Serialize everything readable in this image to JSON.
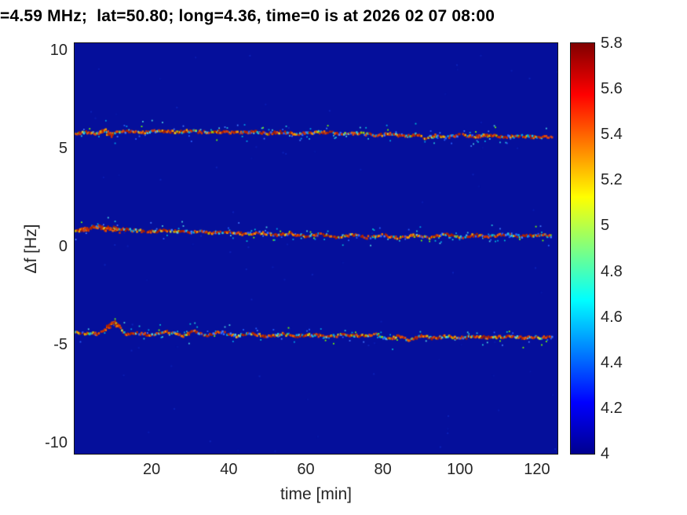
{
  "chart_data": {
    "type": "heatmap",
    "title": "=4.59 MHz;  lat=50.80; long=4.36, time=0 is at 2026 02 07 08:00",
    "xlabel": "time [min]",
    "ylabel": "Δf [Hz]",
    "xlim": [
      0,
      125
    ],
    "ylim": [
      -10,
      10
    ],
    "xticks": [
      20,
      40,
      60,
      80,
      100,
      120
    ],
    "yticks": [
      10,
      5,
      0,
      -5,
      -10
    ],
    "grid": false,
    "colorbar": {
      "min": 4,
      "max": 5.8,
      "ticks": [
        4,
        4.2,
        4.4,
        4.6,
        4.8,
        5,
        5.2,
        5.4,
        5.6,
        5.8
      ],
      "colormap": "jet",
      "position": "right"
    },
    "background_value": 4,
    "traces": [
      {
        "name": "upper-doppler-trace",
        "dense_span": [
          6,
          10
        ],
        "points": [
          [
            0,
            5.75
          ],
          [
            3,
            5.8
          ],
          [
            6,
            5.72
          ],
          [
            8,
            5.95
          ],
          [
            9.5,
            5.7
          ],
          [
            11,
            5.82
          ],
          [
            14,
            5.85
          ],
          [
            18,
            5.8
          ],
          [
            22,
            5.88
          ],
          [
            26,
            5.82
          ],
          [
            30,
            5.88
          ],
          [
            34,
            5.8
          ],
          [
            38,
            5.85
          ],
          [
            42,
            5.78
          ],
          [
            46,
            5.84
          ],
          [
            50,
            5.76
          ],
          [
            54,
            5.82
          ],
          [
            58,
            5.72
          ],
          [
            62,
            5.78
          ],
          [
            66,
            5.8
          ],
          [
            70,
            5.72
          ],
          [
            74,
            5.76
          ],
          [
            78,
            5.66
          ],
          [
            82,
            5.72
          ],
          [
            86,
            5.58
          ],
          [
            88.5,
            5.68
          ],
          [
            91,
            5.52
          ],
          [
            94,
            5.66
          ],
          [
            97,
            5.55
          ],
          [
            100,
            5.68
          ],
          [
            104,
            5.6
          ],
          [
            108,
            5.66
          ],
          [
            112,
            5.58
          ],
          [
            116,
            5.62
          ],
          [
            120,
            5.56
          ],
          [
            124,
            5.6
          ]
        ]
      },
      {
        "name": "center-doppler-trace",
        "dense_span": [
          1,
          12
        ],
        "points": [
          [
            0,
            0.78
          ],
          [
            3,
            0.9
          ],
          [
            6,
            1.0
          ],
          [
            9,
            0.95
          ],
          [
            12,
            0.88
          ],
          [
            16,
            0.8
          ],
          [
            20,
            0.76
          ],
          [
            24,
            0.82
          ],
          [
            28,
            0.72
          ],
          [
            32,
            0.78
          ],
          [
            36,
            0.68
          ],
          [
            40,
            0.74
          ],
          [
            44,
            0.62
          ],
          [
            48,
            0.7
          ],
          [
            52,
            0.58
          ],
          [
            56,
            0.66
          ],
          [
            60,
            0.52
          ],
          [
            64,
            0.62
          ],
          [
            68,
            0.48
          ],
          [
            72,
            0.6
          ],
          [
            76,
            0.46
          ],
          [
            80,
            0.58
          ],
          [
            84,
            0.42
          ],
          [
            88,
            0.56
          ],
          [
            92,
            0.46
          ],
          [
            96,
            0.62
          ],
          [
            100,
            0.46
          ],
          [
            104,
            0.58
          ],
          [
            108,
            0.5
          ],
          [
            112,
            0.62
          ],
          [
            116,
            0.52
          ],
          [
            120,
            0.58
          ],
          [
            124,
            0.52
          ]
        ]
      },
      {
        "name": "lower-doppler-trace",
        "dense_span": [
          8,
          12
        ],
        "points": [
          [
            0,
            -4.35
          ],
          [
            3,
            -4.42
          ],
          [
            6,
            -4.46
          ],
          [
            8,
            -4.25
          ],
          [
            10,
            -3.8
          ],
          [
            11.5,
            -4.05
          ],
          [
            13,
            -4.45
          ],
          [
            16,
            -4.4
          ],
          [
            20,
            -4.52
          ],
          [
            24,
            -4.36
          ],
          [
            28,
            -4.55
          ],
          [
            31,
            -4.32
          ],
          [
            34,
            -4.52
          ],
          [
            38,
            -4.36
          ],
          [
            42,
            -4.56
          ],
          [
            46,
            -4.44
          ],
          [
            50,
            -4.6
          ],
          [
            54,
            -4.46
          ],
          [
            58,
            -4.56
          ],
          [
            62,
            -4.5
          ],
          [
            66,
            -4.6
          ],
          [
            70,
            -4.5
          ],
          [
            74,
            -4.56
          ],
          [
            78,
            -4.46
          ],
          [
            81,
            -4.72
          ],
          [
            84,
            -4.58
          ],
          [
            87,
            -4.78
          ],
          [
            90,
            -4.55
          ],
          [
            93,
            -4.68
          ],
          [
            96,
            -4.58
          ],
          [
            100,
            -4.66
          ],
          [
            104,
            -4.58
          ],
          [
            108,
            -4.64
          ],
          [
            112,
            -4.58
          ],
          [
            116,
            -4.66
          ],
          [
            120,
            -4.62
          ],
          [
            124,
            -4.64
          ]
        ]
      }
    ]
  },
  "colors": {
    "plot_background": "#050f9b",
    "trace_main": "#c62f04",
    "label": "#262626"
  }
}
